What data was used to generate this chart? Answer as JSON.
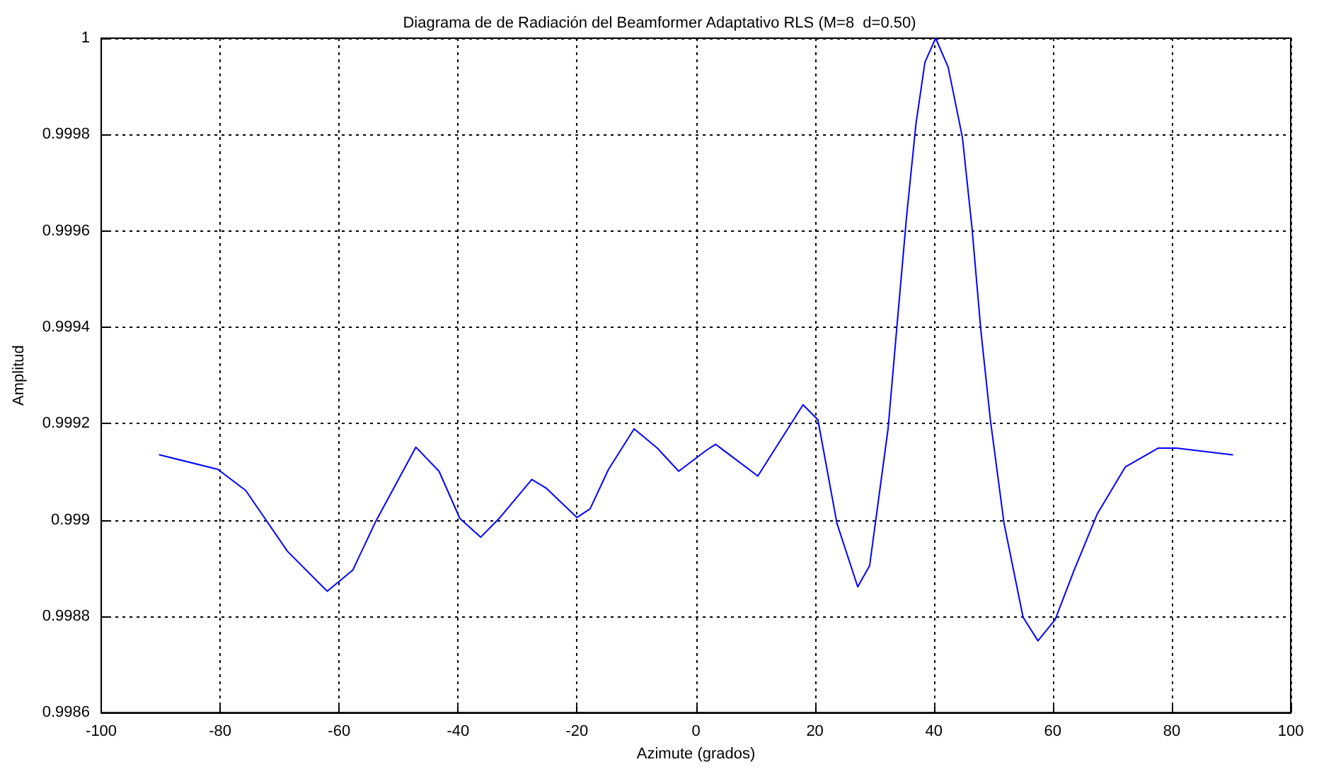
{
  "chart_data": {
    "type": "line",
    "title": "Diagrama de de Radiación del Beamformer Adaptativo RLS (M=8  d=0.50)",
    "xlabel": "Azimute (grados)",
    "ylabel": "Amplitud",
    "xlim": [
      -100,
      100
    ],
    "xticks": [
      -100,
      -80,
      -60,
      -40,
      -20,
      0,
      20,
      40,
      60,
      80,
      100
    ],
    "ylim": [
      0.9986,
      1
    ],
    "yticks": [
      0.9986,
      0.9988,
      0.999,
      0.9992,
      0.9994,
      0.9996,
      0.9998,
      1
    ],
    "grid": true,
    "line_style": "solid",
    "marker": "none",
    "series": [
      {
        "color": "#0000ff",
        "x": [
          -90.2,
          -80.4,
          -75.7,
          -68.7,
          -62,
          -57.7,
          -53.8,
          -47.1,
          -43.2,
          -39.7,
          -36.2,
          -33.1,
          -27.6,
          -25.2,
          -20,
          -17.8,
          -14.7,
          -10.4,
          -6.5,
          -2.9,
          1.8,
          3.3,
          10.4,
          18,
          20.5,
          23.7,
          27.2,
          29.2,
          32.3,
          33.8,
          35.4,
          37,
          38.5,
          40.3,
          42.4,
          44.8,
          46.4,
          47.9,
          49.5,
          51.8,
          55,
          57.5,
          60.4,
          63.6,
          67.5,
          72.2,
          77.7,
          80.8,
          90.2
        ],
        "values": [
          0.999135,
          0.999105,
          0.999061,
          0.998935,
          0.998852,
          0.998896,
          0.998998,
          0.999151,
          0.999101,
          0.999003,
          0.998964,
          0.999003,
          0.999084,
          0.999066,
          0.999005,
          0.999023,
          0.999105,
          0.999189,
          0.999149,
          0.999101,
          0.999145,
          0.999157,
          0.999091,
          0.999239,
          0.999208,
          0.998993,
          0.998861,
          0.998905,
          0.999189,
          0.999403,
          0.999628,
          0.999823,
          0.99995,
          1,
          0.99994,
          0.999794,
          0.999608,
          0.999394,
          0.999208,
          0.998993,
          0.998798,
          0.998749,
          0.998793,
          0.998896,
          0.999013,
          0.99911,
          0.999149,
          0.999149,
          0.999135
        ]
      }
    ]
  }
}
